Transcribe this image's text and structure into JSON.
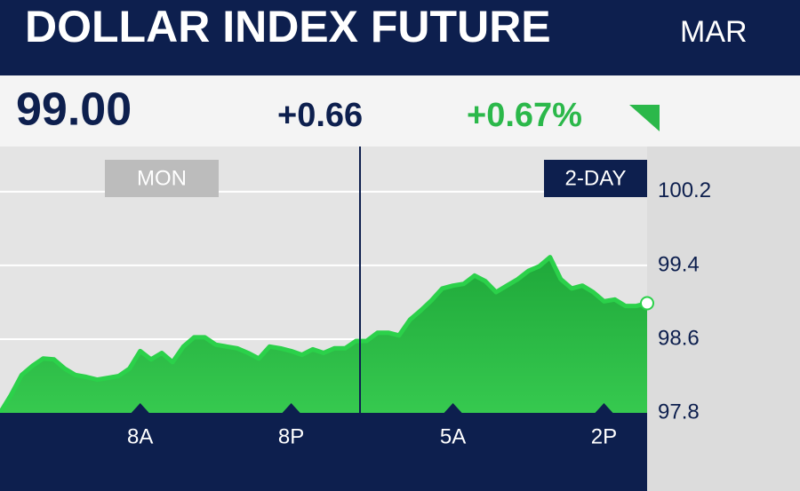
{
  "chart_data": {
    "type": "area",
    "title": "DOLLAR INDEX FUTURE",
    "subtitle": "MAR",
    "last": "99.00",
    "change": "+0.66",
    "change_pct": "+0.67%",
    "period_left": "MON",
    "period_right": "2-DAY",
    "color": "#2bd14a",
    "categories": [
      null,
      null,
      null,
      null,
      null,
      null,
      null,
      null,
      null,
      null,
      null,
      null,
      null,
      "8A",
      null,
      null,
      null,
      null,
      null,
      null,
      null,
      null,
      null,
      null,
      null,
      null,
      null,
      "8P",
      null,
      null,
      null,
      null,
      null,
      null,
      null,
      null,
      null,
      null,
      null,
      null,
      null,
      null,
      "5A",
      null,
      null,
      null,
      null,
      null,
      null,
      null,
      null,
      null,
      null,
      null,
      null,
      null,
      "2P",
      null,
      null,
      null,
      null
    ],
    "values": [
      97.8,
      97.99,
      98.21,
      98.31,
      98.39,
      98.38,
      98.28,
      98.21,
      98.19,
      98.16,
      98.18,
      98.2,
      98.28,
      98.47,
      98.38,
      98.45,
      98.35,
      98.52,
      98.62,
      98.62,
      98.54,
      98.52,
      98.5,
      98.45,
      98.39,
      98.52,
      98.5,
      98.47,
      98.43,
      98.49,
      98.45,
      98.5,
      98.5,
      98.58,
      98.58,
      98.67,
      98.67,
      98.64,
      98.81,
      98.91,
      99.02,
      99.15,
      99.18,
      99.2,
      99.29,
      99.23,
      99.11,
      99.18,
      99.25,
      99.34,
      99.39,
      99.49,
      99.25,
      99.15,
      99.18,
      99.11,
      99.01,
      99.03,
      98.96,
      98.96,
      98.99
    ],
    "ylim": [
      97.8,
      100.69
    ],
    "yticks": [
      97.8,
      98.6,
      99.4,
      100.2
    ],
    "grid": true
  }
}
